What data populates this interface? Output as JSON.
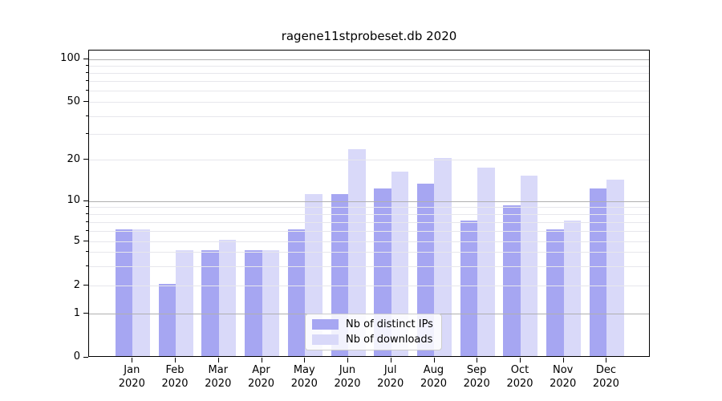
{
  "chart_data": {
    "type": "bar",
    "title": "ragene11stprobeset.db 2020",
    "categories": [
      "Jan",
      "Feb",
      "Mar",
      "Apr",
      "May",
      "Jun",
      "Jul",
      "Aug",
      "Sep",
      "Oct",
      "Nov",
      "Dec"
    ],
    "category_year": "2020",
    "series": [
      {
        "name": "Nb of distinct IPs",
        "color": "#a6a6f2",
        "values": [
          6,
          2,
          4,
          4,
          6,
          11,
          12,
          13,
          7,
          9,
          6,
          12
        ]
      },
      {
        "name": "Nb of downloads",
        "color": "#d9d9f9",
        "values": [
          6,
          4,
          5,
          4,
          11,
          23,
          16,
          20,
          17,
          15,
          7,
          14
        ]
      }
    ],
    "xlabel": "",
    "ylabel": "",
    "y_ticks": [
      0,
      1,
      2,
      5,
      10,
      20,
      50,
      100
    ],
    "y_major_gridlines": [
      1,
      10,
      100
    ],
    "y_minor_gridlines": [
      2,
      3,
      4,
      5,
      6,
      7,
      8,
      9,
      20,
      30,
      40,
      50,
      60,
      70,
      80,
      90
    ],
    "ylim": [
      0,
      115
    ],
    "y_scale": "symlog-like",
    "grid": true,
    "legend_position": "lower center",
    "colors": {
      "axis": "#000000",
      "major_grid": "#b0b0b0",
      "minor_grid": "#e7e7ec",
      "background": "#ffffff",
      "legend_border": "#cccccc"
    }
  }
}
